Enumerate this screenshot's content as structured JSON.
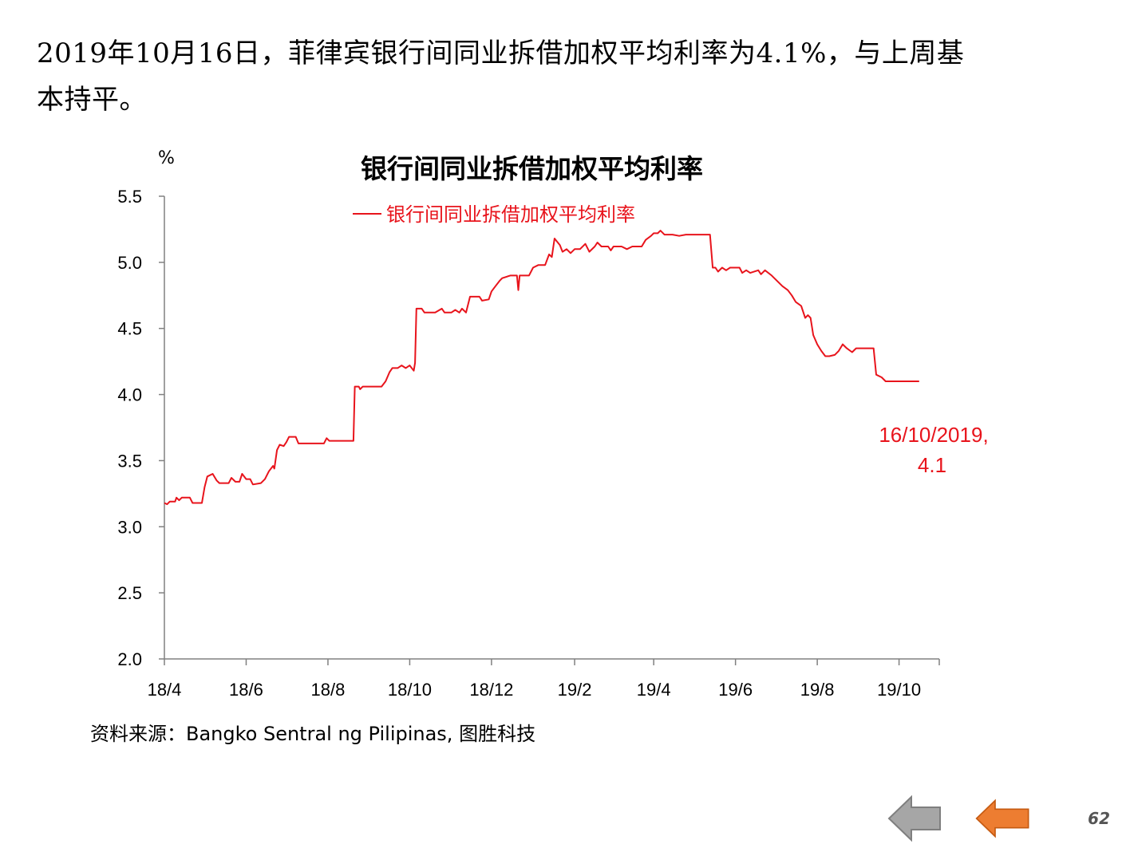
{
  "headline": {
    "line1": "2019年10月16日，菲律宾银行间同业拆借加权平均利率为4.1%，与上周基",
    "line2": "本持平。"
  },
  "unit_label": "%",
  "source": "资料来源：Bangko  Sentral  ng Pilipinas,  图胜科技",
  "page_number": "62",
  "nav": {
    "back_icon": "arrow-left-gray",
    "prev_icon": "arrow-left-orange",
    "back_color": "#a6a6a6",
    "prev_color": "#ed7d31"
  },
  "chart_data": {
    "type": "line",
    "title": "银行间同业拆借加权平均利率",
    "ylabel": "%",
    "ylim": [
      2.0,
      5.5
    ],
    "yticks": [
      "2.0",
      "2.5",
      "3.0",
      "3.5",
      "4.0",
      "4.5",
      "5.0",
      "5.5"
    ],
    "xlim": [
      "2018-04-01",
      "2019-10-31"
    ],
    "xticks": [
      {
        "date": "2018-04-01",
        "label": "18/4"
      },
      {
        "date": "2018-06-01",
        "label": "18/6"
      },
      {
        "date": "2018-08-01",
        "label": "18/8"
      },
      {
        "date": "2018-10-01",
        "label": "18/10"
      },
      {
        "date": "2018-12-01",
        "label": "18/12"
      },
      {
        "date": "2019-02-01",
        "label": "19/2"
      },
      {
        "date": "2019-04-01",
        "label": "19/4"
      },
      {
        "date": "2019-06-01",
        "label": "19/6"
      },
      {
        "date": "2019-08-01",
        "label": "19/8"
      },
      {
        "date": "2019-10-01",
        "label": "19/10"
      }
    ],
    "legend": "top-left",
    "color": "#e8141c",
    "series": [
      {
        "name": "银行间同业拆借加权平均利率",
        "points": [
          [
            "2018-04-01",
            3.18
          ],
          [
            "2018-04-03",
            3.17
          ],
          [
            "2018-04-05",
            3.19
          ],
          [
            "2018-04-09",
            3.19
          ],
          [
            "2018-04-10",
            3.22
          ],
          [
            "2018-04-12",
            3.2
          ],
          [
            "2018-04-14",
            3.22
          ],
          [
            "2018-04-20",
            3.22
          ],
          [
            "2018-04-22",
            3.18
          ],
          [
            "2018-04-29",
            3.18
          ],
          [
            "2018-05-01",
            3.3
          ],
          [
            "2018-05-03",
            3.38
          ],
          [
            "2018-05-07",
            3.4
          ],
          [
            "2018-05-10",
            3.35
          ],
          [
            "2018-05-12",
            3.33
          ],
          [
            "2018-05-19",
            3.33
          ],
          [
            "2018-05-21",
            3.37
          ],
          [
            "2018-05-24",
            3.34
          ],
          [
            "2018-05-27",
            3.34
          ],
          [
            "2018-05-29",
            3.4
          ],
          [
            "2018-06-01",
            3.36
          ],
          [
            "2018-06-04",
            3.36
          ],
          [
            "2018-06-06",
            3.32
          ],
          [
            "2018-06-12",
            3.33
          ],
          [
            "2018-06-15",
            3.36
          ],
          [
            "2018-06-18",
            3.42
          ],
          [
            "2018-06-21",
            3.46
          ],
          [
            "2018-06-22",
            3.44
          ],
          [
            "2018-06-24",
            3.58
          ],
          [
            "2018-06-26",
            3.62
          ],
          [
            "2018-06-29",
            3.61
          ],
          [
            "2018-07-01",
            3.64
          ],
          [
            "2018-07-03",
            3.68
          ],
          [
            "2018-07-08",
            3.68
          ],
          [
            "2018-07-10",
            3.63
          ],
          [
            "2018-07-20",
            3.63
          ],
          [
            "2018-07-29",
            3.63
          ],
          [
            "2018-07-31",
            3.67
          ],
          [
            "2018-08-02",
            3.65
          ],
          [
            "2018-08-10",
            3.65
          ],
          [
            "2018-08-17",
            3.65
          ],
          [
            "2018-08-20",
            3.65
          ],
          [
            "2018-08-21",
            4.06
          ],
          [
            "2018-08-24",
            4.06
          ],
          [
            "2018-08-25",
            4.04
          ],
          [
            "2018-08-27",
            4.06
          ],
          [
            "2018-09-10",
            4.06
          ],
          [
            "2018-09-13",
            4.1
          ],
          [
            "2018-09-16",
            4.17
          ],
          [
            "2018-09-18",
            4.2
          ],
          [
            "2018-09-22",
            4.2
          ],
          [
            "2018-09-25",
            4.22
          ],
          [
            "2018-09-28",
            4.2
          ],
          [
            "2018-10-01",
            4.22
          ],
          [
            "2018-10-04",
            4.18
          ],
          [
            "2018-10-05",
            4.24
          ],
          [
            "2018-10-06",
            4.65
          ],
          [
            "2018-10-10",
            4.65
          ],
          [
            "2018-10-12",
            4.62
          ],
          [
            "2018-10-20",
            4.62
          ],
          [
            "2018-10-25",
            4.65
          ],
          [
            "2018-10-27",
            4.62
          ],
          [
            "2018-11-01",
            4.62
          ],
          [
            "2018-11-04",
            4.64
          ],
          [
            "2018-11-07",
            4.62
          ],
          [
            "2018-11-09",
            4.65
          ],
          [
            "2018-11-12",
            4.62
          ],
          [
            "2018-11-15",
            4.74
          ],
          [
            "2018-11-22",
            4.74
          ],
          [
            "2018-11-24",
            4.71
          ],
          [
            "2018-11-29",
            4.72
          ],
          [
            "2018-12-01",
            4.78
          ],
          [
            "2018-12-04",
            4.82
          ],
          [
            "2018-12-07",
            4.86
          ],
          [
            "2018-12-09",
            4.88
          ],
          [
            "2018-12-15",
            4.9
          ],
          [
            "2018-12-20",
            4.9
          ],
          [
            "2018-12-21",
            4.79
          ],
          [
            "2018-12-22",
            4.9
          ],
          [
            "2018-12-29",
            4.9
          ],
          [
            "2019-01-01",
            4.96
          ],
          [
            "2019-01-05",
            4.98
          ],
          [
            "2019-01-10",
            4.98
          ],
          [
            "2019-01-13",
            5.06
          ],
          [
            "2019-01-15",
            5.04
          ],
          [
            "2019-01-17",
            5.18
          ],
          [
            "2019-01-21",
            5.13
          ],
          [
            "2019-01-23",
            5.08
          ],
          [
            "2019-01-26",
            5.1
          ],
          [
            "2019-01-29",
            5.07
          ],
          [
            "2019-02-01",
            5.1
          ],
          [
            "2019-02-05",
            5.1
          ],
          [
            "2019-02-09",
            5.14
          ],
          [
            "2019-02-12",
            5.08
          ],
          [
            "2019-02-16",
            5.12
          ],
          [
            "2019-02-18",
            5.15
          ],
          [
            "2019-02-21",
            5.12
          ],
          [
            "2019-02-26",
            5.12
          ],
          [
            "2019-02-28",
            5.09
          ],
          [
            "2019-03-02",
            5.12
          ],
          [
            "2019-03-08",
            5.12
          ],
          [
            "2019-03-12",
            5.1
          ],
          [
            "2019-03-16",
            5.12
          ],
          [
            "2019-03-23",
            5.12
          ],
          [
            "2019-03-26",
            5.17
          ],
          [
            "2019-03-30",
            5.2
          ],
          [
            "2019-04-01",
            5.22
          ],
          [
            "2019-04-04",
            5.22
          ],
          [
            "2019-04-06",
            5.24
          ],
          [
            "2019-04-09",
            5.21
          ],
          [
            "2019-04-15",
            5.21
          ],
          [
            "2019-04-20",
            5.2
          ],
          [
            "2019-04-25",
            5.21
          ],
          [
            "2019-05-01",
            5.21
          ],
          [
            "2019-05-10",
            5.21
          ],
          [
            "2019-05-13",
            5.21
          ],
          [
            "2019-05-15",
            4.96
          ],
          [
            "2019-05-17",
            4.96
          ],
          [
            "2019-05-19",
            4.93
          ],
          [
            "2019-05-22",
            4.96
          ],
          [
            "2019-05-25",
            4.94
          ],
          [
            "2019-05-28",
            4.96
          ],
          [
            "2019-06-01",
            4.96
          ],
          [
            "2019-06-04",
            4.96
          ],
          [
            "2019-06-06",
            4.92
          ],
          [
            "2019-06-09",
            4.94
          ],
          [
            "2019-06-12",
            4.92
          ],
          [
            "2019-06-18",
            4.94
          ],
          [
            "2019-06-20",
            4.91
          ],
          [
            "2019-06-23",
            4.94
          ],
          [
            "2019-06-28",
            4.9
          ],
          [
            "2019-07-02",
            4.86
          ],
          [
            "2019-07-06",
            4.82
          ],
          [
            "2019-07-10",
            4.79
          ],
          [
            "2019-07-13",
            4.75
          ],
          [
            "2019-07-16",
            4.7
          ],
          [
            "2019-07-20",
            4.67
          ],
          [
            "2019-07-23",
            4.58
          ],
          [
            "2019-07-25",
            4.6
          ],
          [
            "2019-07-27",
            4.58
          ],
          [
            "2019-07-29",
            4.45
          ],
          [
            "2019-08-01",
            4.38
          ],
          [
            "2019-08-04",
            4.33
          ],
          [
            "2019-08-07",
            4.29
          ],
          [
            "2019-08-10",
            4.29
          ],
          [
            "2019-08-14",
            4.3
          ],
          [
            "2019-08-17",
            4.33
          ],
          [
            "2019-08-20",
            4.38
          ],
          [
            "2019-08-23",
            4.35
          ],
          [
            "2019-08-27",
            4.32
          ],
          [
            "2019-08-30",
            4.35
          ],
          [
            "2019-09-06",
            4.35
          ],
          [
            "2019-09-12",
            4.35
          ],
          [
            "2019-09-14",
            4.15
          ],
          [
            "2019-09-18",
            4.13
          ],
          [
            "2019-09-21",
            4.1
          ],
          [
            "2019-10-01",
            4.1
          ],
          [
            "2019-10-16",
            4.1
          ]
        ]
      }
    ],
    "annotation": {
      "date": "2019-10-16",
      "value": 4.1,
      "line1": "16/10/2019,",
      "line2": "4.1"
    }
  }
}
